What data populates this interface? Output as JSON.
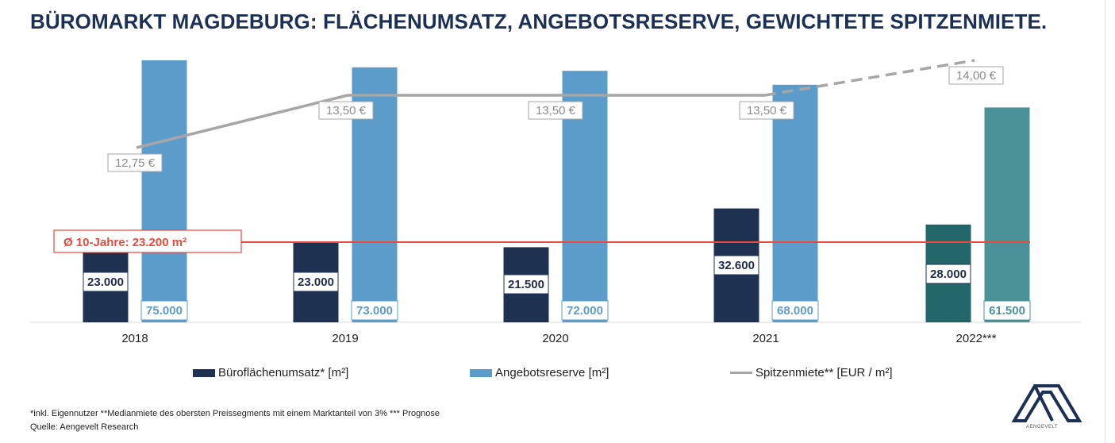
{
  "title": "BÜROMARKT MAGDEBURG: FLÄCHENUMSATZ, ANGEBOTSRESERVE, GEWICHTETE SPITZENMIETE.",
  "chart_data": {
    "type": "bar",
    "categories": [
      "2018",
      "2019",
      "2020",
      "2021",
      "2022***"
    ],
    "series": [
      {
        "name": "Büroflächenumsatz* [m²]",
        "values": [
          23000,
          23000,
          21500,
          32600,
          28000
        ],
        "labels": [
          "23.000",
          "23.000",
          "21.500",
          "32.600",
          "28.000"
        ],
        "color": "#1f3150",
        "forecast_color": "#23666a"
      },
      {
        "name": "Angebotsreserve [m²]",
        "values": [
          75000,
          73000,
          72000,
          68000,
          61500
        ],
        "labels": [
          "75.000",
          "73.000",
          "72.000",
          "68.000",
          "61.500"
        ],
        "color": "#5b9ccb",
        "forecast_color": "#4a9298"
      },
      {
        "name": "Spitzenmiete** [EUR / m²]",
        "type": "line",
        "values": [
          12.75,
          13.5,
          13.5,
          13.5,
          14.0
        ],
        "labels": [
          "12,75 €",
          "13,50 €",
          "13,50 €",
          "13,50 €",
          "14,00 €"
        ],
        "color": "#a6a6a6",
        "dashed_last_segment": true
      }
    ],
    "reference_line": {
      "label": "Ø 10-Jahre: 23.200 m²",
      "value": 23200,
      "color": "#e84a3c"
    },
    "forecast_category": "2022***"
  },
  "footnotes": [
    "*inkl. Eigennutzer **Medianmiete des obersten Preissegments mit einem Marktanteil von 3% *** Prognose",
    "Quelle: Aengevelt Research"
  ],
  "logo": {
    "text": "AENGEVELT",
    "color": "#1c2f55"
  }
}
